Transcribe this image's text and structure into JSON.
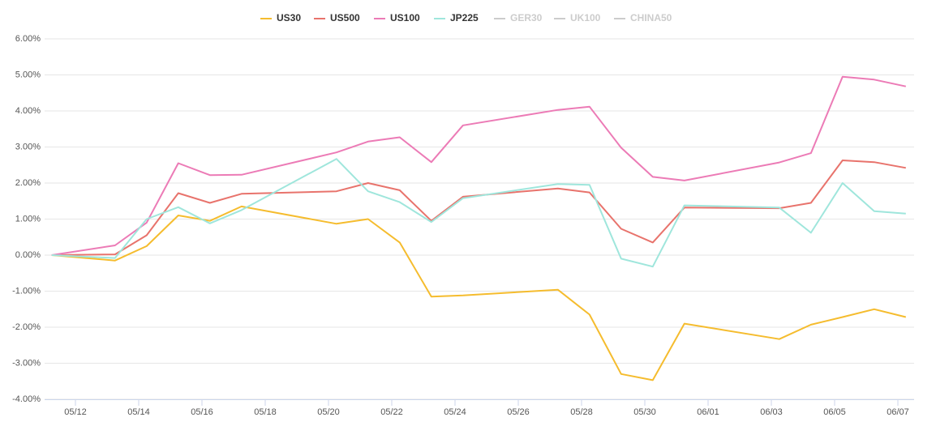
{
  "chart_data": {
    "type": "line",
    "x": [
      "05/11",
      "05/13",
      "05/14",
      "05/15",
      "05/16",
      "05/17",
      "05/20",
      "05/21",
      "05/22",
      "05/23",
      "05/24",
      "05/27",
      "05/28",
      "05/29",
      "05/30",
      "05/31",
      "06/03",
      "06/04",
      "06/05",
      "06/06",
      "06/07"
    ],
    "series": [
      {
        "name": "US30",
        "color": "#f5bc2e",
        "values": [
          0,
          -0.15,
          0.25,
          1.1,
          0.95,
          1.35,
          0.87,
          1.0,
          0.35,
          -1.15,
          -1.12,
          -0.96,
          -1.65,
          -3.3,
          -3.47,
          -1.9,
          -2.33,
          -1.93,
          -1.72,
          -1.5,
          -1.72
        ]
      },
      {
        "name": "US500",
        "color": "#e8736c",
        "values": [
          0,
          0.02,
          0.55,
          1.72,
          1.45,
          1.7,
          1.77,
          2.0,
          1.8,
          0.95,
          1.62,
          1.85,
          1.74,
          0.73,
          0.35,
          1.32,
          1.3,
          1.45,
          2.63,
          2.58,
          2.42
        ]
      },
      {
        "name": "US100",
        "color": "#ec7bb6",
        "values": [
          0,
          0.27,
          0.9,
          2.55,
          2.22,
          2.23,
          2.85,
          3.15,
          3.27,
          2.58,
          3.6,
          4.03,
          4.12,
          2.98,
          2.17,
          2.07,
          2.57,
          2.83,
          4.95,
          4.87,
          4.68
        ]
      },
      {
        "name": "JP225",
        "color": "#9fe6dc",
        "values": [
          0,
          -0.08,
          1.0,
          1.33,
          0.88,
          1.25,
          2.67,
          1.77,
          1.47,
          0.92,
          1.58,
          1.97,
          1.95,
          -0.1,
          -0.32,
          1.38,
          1.32,
          0.62,
          2.0,
          1.22,
          1.15
        ]
      },
      {
        "name": "GER30",
        "color": "#cccccc",
        "hidden": true,
        "values": [
          null,
          null,
          null,
          null,
          null,
          null,
          null,
          null,
          null,
          null,
          null,
          null,
          null,
          null,
          null,
          null,
          null,
          null,
          null,
          null,
          null
        ]
      },
      {
        "name": "UK100",
        "color": "#cccccc",
        "hidden": true,
        "values": [
          null,
          null,
          null,
          null,
          null,
          null,
          null,
          null,
          null,
          null,
          null,
          null,
          null,
          null,
          null,
          null,
          null,
          null,
          null,
          null,
          null
        ]
      },
      {
        "name": "CHINA50",
        "color": "#cccccc",
        "hidden": true,
        "values": [
          null,
          null,
          null,
          null,
          null,
          null,
          null,
          null,
          null,
          null,
          null,
          null,
          null,
          null,
          null,
          null,
          null,
          null,
          null,
          null,
          null
        ]
      }
    ],
    "xlim": [
      "05/11",
      "06/07"
    ],
    "xticks": [
      "05/12",
      "05/14",
      "05/16",
      "05/18",
      "05/20",
      "05/22",
      "05/24",
      "05/26",
      "05/28",
      "05/30",
      "06/01",
      "06/03",
      "06/05",
      "06/07"
    ],
    "ylim": [
      -4,
      6
    ],
    "yticks": [
      {
        "value": -4,
        "label": "-4.00%"
      },
      {
        "value": -3,
        "label": "-3.00%"
      },
      {
        "value": -2,
        "label": "-2.00%"
      },
      {
        "value": -1,
        "label": "-1.00%"
      },
      {
        "value": 0,
        "label": "0.00%"
      },
      {
        "value": 1,
        "label": "1.00%"
      },
      {
        "value": 2,
        "label": "2.00%"
      },
      {
        "value": 3,
        "label": "3.00%"
      },
      {
        "value": 4,
        "label": "4.00%"
      },
      {
        "value": 5,
        "label": "5.00%"
      },
      {
        "value": 6,
        "label": "6.00%"
      }
    ],
    "grid": true,
    "legend": "top"
  }
}
